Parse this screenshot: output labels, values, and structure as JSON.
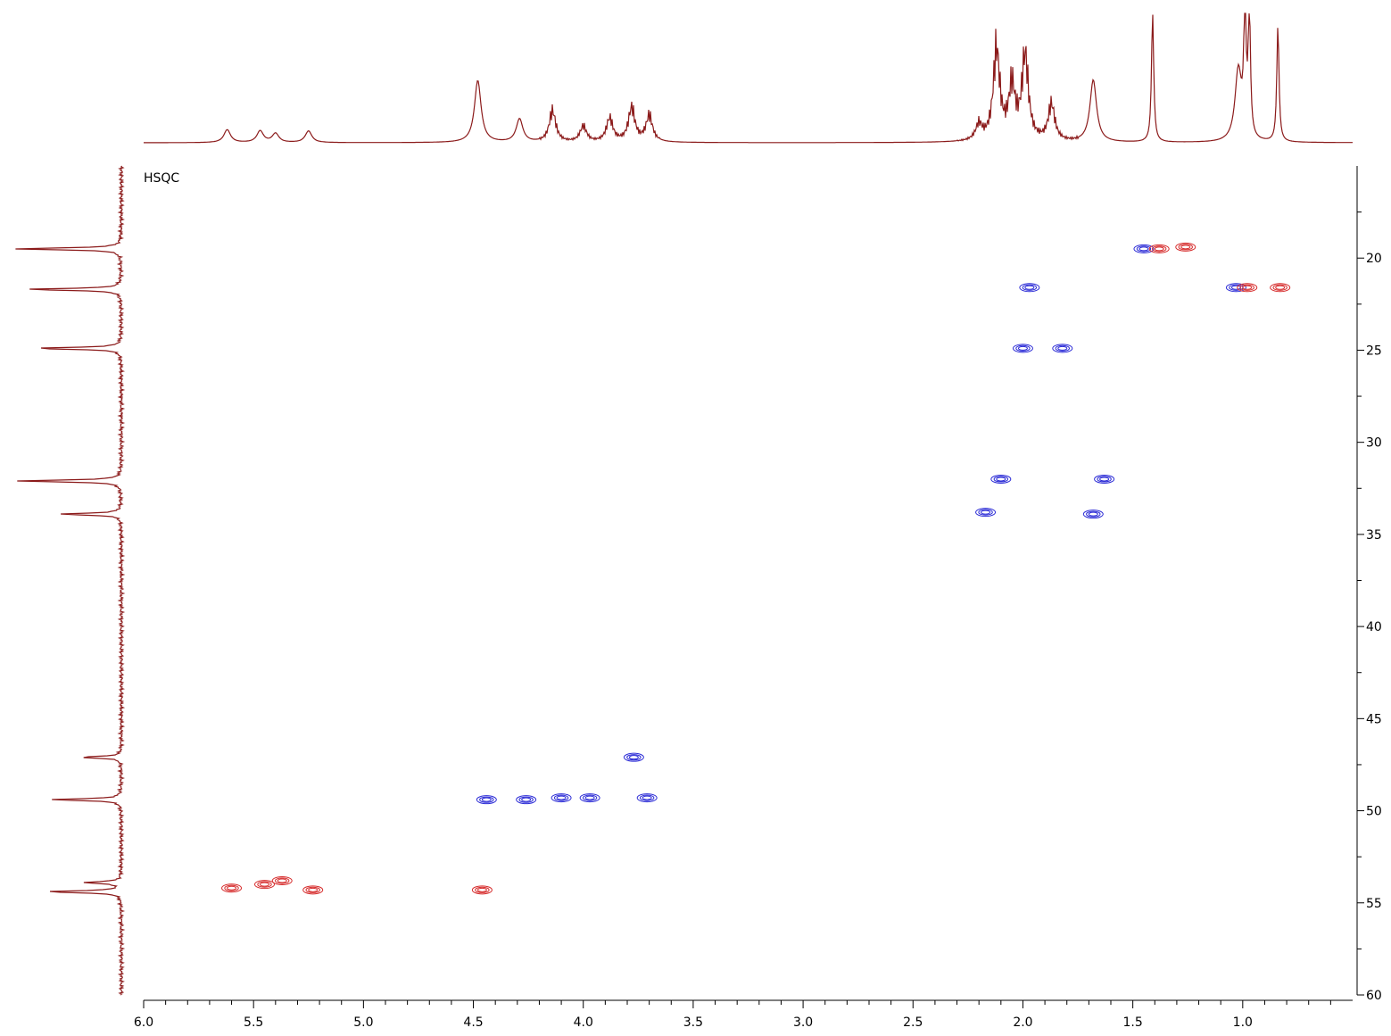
{
  "chart_data": {
    "type": "heatmap",
    "title": "",
    "experiment_label": "HSQC",
    "xlabel": "",
    "ylabel": "",
    "x_reversed": true,
    "y_increases_downward": true,
    "xlim": [
      6.0,
      0.5
    ],
    "ylim": [
      15,
      60
    ],
    "x_ticks": [
      6.0,
      5.5,
      5.0,
      4.5,
      4.0,
      3.5,
      3.0,
      2.5,
      2.0,
      1.5,
      1.0
    ],
    "x_tick_labels": [
      "6.0",
      "5.5",
      "5.0",
      "4.5",
      "4.0",
      "3.5",
      "3.0",
      "2.5",
      "2.0",
      "1.5",
      "1.0"
    ],
    "y_ticks": [
      20,
      25,
      30,
      35,
      40,
      45,
      50,
      55,
      60
    ],
    "y_tick_labels": [
      "20",
      "25",
      "30",
      "35",
      "40",
      "45",
      "50",
      "55",
      "60"
    ],
    "grid": false,
    "colors": {
      "projection": "#8b1a1a",
      "positive_phase": "#2b2bd6",
      "negative_phase": "#d62b2b",
      "axis": "#000000"
    },
    "series": [
      {
        "color": "#2b2bd6",
        "peaks": [
          {
            "x": 1.97,
            "y": 21.6
          },
          {
            "x": 2.0,
            "y": 24.9
          },
          {
            "x": 1.82,
            "y": 24.9
          },
          {
            "x": 2.1,
            "y": 32.0
          },
          {
            "x": 1.63,
            "y": 32.0
          },
          {
            "x": 2.17,
            "y": 33.8
          },
          {
            "x": 1.68,
            "y": 33.9
          },
          {
            "x": 1.45,
            "y": 19.5
          },
          {
            "x": 1.03,
            "y": 21.6
          },
          {
            "x": 3.77,
            "y": 47.1
          },
          {
            "x": 4.44,
            "y": 49.4
          },
          {
            "x": 4.26,
            "y": 49.4
          },
          {
            "x": 4.1,
            "y": 49.3
          },
          {
            "x": 3.97,
            "y": 49.3
          },
          {
            "x": 3.71,
            "y": 49.3
          }
        ]
      },
      {
        "color": "#d62b2b",
        "peaks": [
          {
            "x": 1.38,
            "y": 19.5
          },
          {
            "x": 1.26,
            "y": 19.4
          },
          {
            "x": 0.98,
            "y": 21.6
          },
          {
            "x": 0.83,
            "y": 21.6
          },
          {
            "x": 5.6,
            "y": 54.2
          },
          {
            "x": 5.45,
            "y": 54.0
          },
          {
            "x": 5.37,
            "y": 53.8
          },
          {
            "x": 5.23,
            "y": 54.3
          },
          {
            "x": 4.46,
            "y": 54.3
          }
        ]
      }
    ],
    "h1_projection_peaks": [
      {
        "x": 5.62,
        "height": 0.1
      },
      {
        "x": 5.47,
        "height": 0.09
      },
      {
        "x": 5.4,
        "height": 0.07
      },
      {
        "x": 5.25,
        "height": 0.09
      },
      {
        "x": 4.48,
        "height": 0.48
      },
      {
        "x": 4.29,
        "height": 0.18
      },
      {
        "x": 4.14,
        "height": 0.24
      },
      {
        "x": 4.0,
        "height": 0.12
      },
      {
        "x": 3.88,
        "height": 0.18
      },
      {
        "x": 3.78,
        "height": 0.26
      },
      {
        "x": 3.7,
        "height": 0.2
      },
      {
        "x": 2.2,
        "height": 0.12
      },
      {
        "x": 2.12,
        "height": 0.7
      },
      {
        "x": 2.05,
        "height": 0.4
      },
      {
        "x": 1.99,
        "height": 0.65
      },
      {
        "x": 1.87,
        "height": 0.28
      },
      {
        "x": 1.68,
        "height": 0.48
      },
      {
        "x": 1.41,
        "height": 1.0
      },
      {
        "x": 1.02,
        "height": 0.55
      },
      {
        "x": 0.99,
        "height": 1.0
      },
      {
        "x": 0.97,
        "height": 1.0
      },
      {
        "x": 0.84,
        "height": 0.9
      }
    ],
    "c13_projection_peaks": [
      {
        "y": 19.5,
        "height": 1.0
      },
      {
        "y": 21.7,
        "height": 0.9
      },
      {
        "y": 24.9,
        "height": 0.83
      },
      {
        "y": 32.1,
        "height": 0.98
      },
      {
        "y": 33.9,
        "height": 0.58
      },
      {
        "y": 47.1,
        "height": 0.38
      },
      {
        "y": 49.4,
        "height": 0.65
      },
      {
        "y": 53.9,
        "height": 0.35
      },
      {
        "y": 54.4,
        "height": 0.72
      }
    ]
  }
}
